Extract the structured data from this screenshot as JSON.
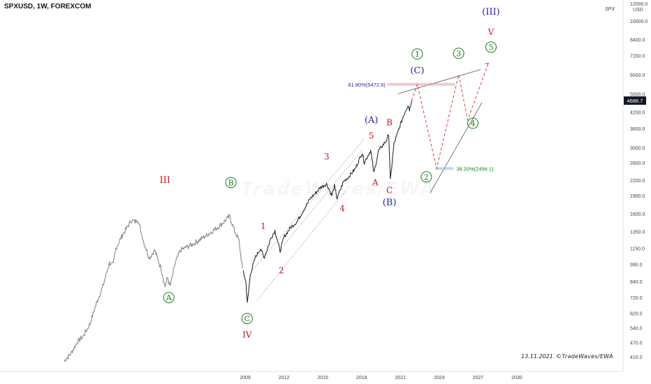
{
  "header": {
    "symbol_title": "SPXUSD, 1W, FOREXCOM",
    "ticker": "SPX",
    "currency_top": "12000.0",
    "currency_unit": "USD"
  },
  "footer": {
    "date": "13.11.2021",
    "credit": "©TradeWaves/EWA"
  },
  "watermark": "TradeWaves/EWA",
  "colors": {
    "price": "#1a1a1a",
    "history": "#888888",
    "red": "#c41a1a",
    "green": "#1c7d1c",
    "navy": "#2a1ea0",
    "fib_pink": "#e89aa8",
    "fib_blue": "#8fb3d9",
    "current_tag": "#131722"
  },
  "chart_data": {
    "type": "line",
    "symbol": "SPXUSD",
    "interval": "1W",
    "y_scale": "log",
    "y_ticks": [
      410,
      470,
      540,
      620,
      720,
      840,
      990,
      1150,
      1350,
      1600,
      1900,
      2200,
      2600,
      3000,
      3600,
      4200,
      5000,
      6000,
      7200,
      8400,
      10000
    ],
    "y_tick_labels": [
      "410.0",
      "470.0",
      "540.0",
      "620.0",
      "720.0",
      "840.0",
      "990.0",
      "1150.0",
      "1350.0",
      "1600.0",
      "1900.0",
      "2200.0",
      "2600.0",
      "3000.0",
      "3600.0",
      "4200.0",
      "5000.0",
      "6000.0",
      "7200.0",
      "8400.0",
      "10000.0"
    ],
    "x_ticks": [
      2009,
      2012,
      2015,
      2018,
      2021,
      2024,
      2027,
      2030
    ],
    "x_tick_labels": [
      "2009",
      "2012",
      "2015",
      "2018",
      "2021",
      "2024",
      "2027",
      "2030"
    ],
    "current_price": 4686.7,
    "current_price_label": "4686.7",
    "history_series": [
      [
        1995.0,
        395
      ],
      [
        1995.5,
        420
      ],
      [
        1996.0,
        470
      ],
      [
        1996.5,
        500
      ],
      [
        1997.0,
        560
      ],
      [
        1997.5,
        680
      ],
      [
        1998.0,
        800
      ],
      [
        1998.5,
        1000
      ],
      [
        1998.8,
        980
      ],
      [
        1999.0,
        1150
      ],
      [
        1999.5,
        1300
      ],
      [
        2000.2,
        1500
      ],
      [
        2000.5,
        1480
      ],
      [
        2000.7,
        1520
      ],
      [
        2001.2,
        1200
      ],
      [
        2001.6,
        1050
      ],
      [
        2002.0,
        1130
      ],
      [
        2002.5,
        950
      ],
      [
        2002.8,
        800
      ],
      [
        2003.0,
        870
      ],
      [
        2003.2,
        800
      ],
      [
        2003.6,
        1000
      ],
      [
        2004.0,
        1130
      ],
      [
        2005.0,
        1200
      ],
      [
        2006.0,
        1300
      ],
      [
        2007.0,
        1420
      ],
      [
        2007.8,
        1560
      ],
      [
        2008.2,
        1350
      ],
      [
        2008.5,
        1250
      ],
      [
        2008.8,
        950
      ]
    ],
    "price_series": [
      [
        2008.85,
        920
      ],
      [
        2009.05,
        840
      ],
      [
        2009.17,
        680
      ],
      [
        2009.4,
        900
      ],
      [
        2009.8,
        1060
      ],
      [
        2010.2,
        1150
      ],
      [
        2010.45,
        1050
      ],
      [
        2010.6,
        1100
      ],
      [
        2011.0,
        1270
      ],
      [
        2011.3,
        1360
      ],
      [
        2011.7,
        1120
      ],
      [
        2012.0,
        1280
      ],
      [
        2012.5,
        1400
      ],
      [
        2013.0,
        1480
      ],
      [
        2013.5,
        1650
      ],
      [
        2014.0,
        1840
      ],
      [
        2014.5,
        1960
      ],
      [
        2014.8,
        2050
      ],
      [
        2015.3,
        2120
      ],
      [
        2015.7,
        1900
      ],
      [
        2015.9,
        2080
      ],
      [
        2016.1,
        1850
      ],
      [
        2016.6,
        2170
      ],
      [
        2017.0,
        2270
      ],
      [
        2017.5,
        2450
      ],
      [
        2018.05,
        2860
      ],
      [
        2018.2,
        2600
      ],
      [
        2018.7,
        2920
      ],
      [
        2018.95,
        2350
      ],
      [
        2019.3,
        2900
      ],
      [
        2019.9,
        3200
      ],
      [
        2020.1,
        3390
      ],
      [
        2020.22,
        2190
      ],
      [
        2020.5,
        3100
      ],
      [
        2020.9,
        3600
      ],
      [
        2021.3,
        4150
      ],
      [
        2021.6,
        4500
      ],
      [
        2021.7,
        4300
      ],
      [
        2021.87,
        4686.7
      ]
    ],
    "projection_path": [
      [
        2021.87,
        4686.7
      ],
      [
        2022.3,
        5472.6
      ],
      [
        2023.8,
        2456.1
      ],
      [
        2025.5,
        6000
      ],
      [
        2026.2,
        3900
      ],
      [
        2027.8,
        6700
      ]
    ],
    "channels": [
      {
        "points": [
          [
            2009.5,
            930
          ],
          [
            2018.2,
            3250
          ]
        ]
      },
      {
        "points": [
          [
            2009.9,
            700
          ],
          [
            2016.8,
            2000
          ]
        ]
      },
      {
        "points": [
          [
            2012.0,
            1190
          ],
          [
            2018.1,
            2950
          ]
        ]
      }
    ],
    "trendlines": [
      {
        "points": [
          [
            2020.8,
            5000
          ],
          [
            2027.2,
            6300
          ]
        ]
      },
      {
        "points": [
          [
            2023.3,
            1950
          ],
          [
            2027.3,
            4600
          ]
        ]
      }
    ],
    "fib_levels": [
      {
        "label": "61.80%(5472.6)",
        "value": 5472.6,
        "from": 2020.0,
        "to": 2025.2
      },
      {
        "label": "38.20%(2456.1)",
        "value": 2456.1,
        "from": 2023.7,
        "to": 2025.1
      }
    ],
    "wave_labels": [
      {
        "text": "III",
        "x": 2002.8,
        "y": 2200,
        "color": "red",
        "style": "plain"
      },
      {
        "text": "B",
        "x": 2007.9,
        "y": 2150,
        "color": "green",
        "style": "circle"
      },
      {
        "text": "A",
        "x": 2003.1,
        "y": 720,
        "color": "green",
        "style": "circle"
      },
      {
        "text": "C",
        "x": 2009.15,
        "y": 590,
        "color": "green",
        "style": "circle"
      },
      {
        "text": "IV",
        "x": 2009.15,
        "y": 505,
        "color": "red",
        "style": "plain"
      },
      {
        "text": "1",
        "x": 2010.4,
        "y": 1420,
        "color": "red",
        "style": "plain"
      },
      {
        "text": "2",
        "x": 2011.8,
        "y": 930,
        "color": "red",
        "style": "plain"
      },
      {
        "text": "3",
        "x": 2015.3,
        "y": 2750,
        "color": "red",
        "style": "plain"
      },
      {
        "text": "4",
        "x": 2016.5,
        "y": 1680,
        "color": "red",
        "style": "plain"
      },
      {
        "text": "5",
        "x": 2018.75,
        "y": 3350,
        "color": "red",
        "style": "plain"
      },
      {
        "text": "(A)",
        "x": 2018.75,
        "y": 3900,
        "color": "navy",
        "style": "plain"
      },
      {
        "text": "A",
        "x": 2019.05,
        "y": 2150,
        "color": "red",
        "style": "plain"
      },
      {
        "text": "B",
        "x": 2020.15,
        "y": 3800,
        "color": "red",
        "style": "plain"
      },
      {
        "text": "C",
        "x": 2020.15,
        "y": 2000,
        "color": "red",
        "style": "plain"
      },
      {
        "text": "(B)",
        "x": 2020.15,
        "y": 1780,
        "color": "navy",
        "style": "plain"
      },
      {
        "text": "(C)",
        "x": 2022.3,
        "y": 6250,
        "color": "navy",
        "style": "plain"
      },
      {
        "text": "1",
        "x": 2022.3,
        "y": 7300,
        "color": "green",
        "style": "circle"
      },
      {
        "text": "2",
        "x": 2023.0,
        "y": 2270,
        "color": "green",
        "style": "circle"
      },
      {
        "text": "3",
        "x": 2025.5,
        "y": 7350,
        "color": "green",
        "style": "circle"
      },
      {
        "text": "4",
        "x": 2026.6,
        "y": 3780,
        "color": "green",
        "style": "circle"
      },
      {
        "text": "V",
        "x": 2028.0,
        "y": 9000,
        "color": "red",
        "style": "plain"
      },
      {
        "text": "5",
        "x": 2028.0,
        "y": 7800,
        "color": "green",
        "style": "circle"
      },
      {
        "text": "(III)",
        "x": 2028.0,
        "y": 10900,
        "color": "navy",
        "style": "plain"
      }
    ]
  }
}
